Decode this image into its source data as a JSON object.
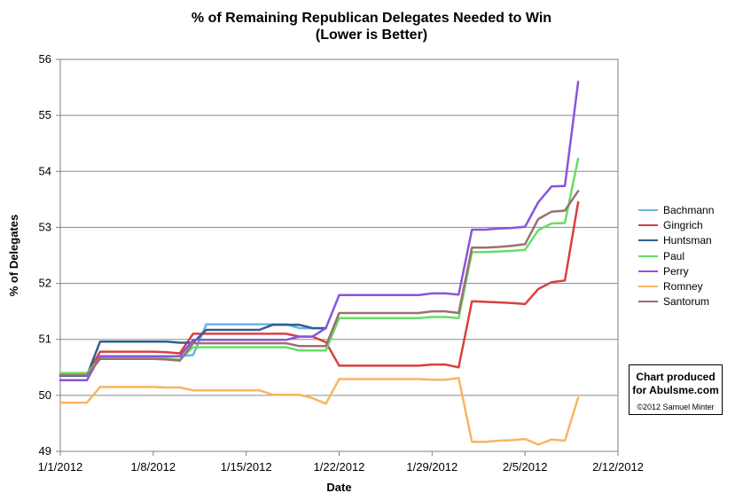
{
  "chart_data": {
    "type": "line",
    "title": "% of Remaining Republican Delegates Needed to Win",
    "subtitle": "(Lower is Better)",
    "xlabel": "Date",
    "ylabel": "% of Delegates",
    "ylim": [
      49,
      56
    ],
    "yticks": [
      "49",
      "50",
      "51",
      "52",
      "53",
      "54",
      "55",
      "56"
    ],
    "xlim_days": [
      0,
      42
    ],
    "xticks": [
      "1/1/2012",
      "1/8/2012",
      "1/15/2012",
      "1/22/2012",
      "1/29/2012",
      "2/5/2012",
      "2/12/2012"
    ],
    "grid": "horizontal",
    "legend_position": "right",
    "series": [
      {
        "name": "Bachmann",
        "color": "#6cb4e4",
        "x": [
          "1/1/2012",
          "1/2/2012",
          "1/3/2012",
          "1/4/2012",
          "1/5/2012",
          "1/6/2012",
          "1/7/2012",
          "1/8/2012",
          "1/9/2012",
          "1/10/2012",
          "1/11/2012",
          "1/12/2012",
          "1/13/2012",
          "1/14/2012",
          "1/15/2012",
          "1/16/2012",
          "1/17/2012",
          "1/18/2012",
          "1/19/2012",
          "1/20/2012",
          "1/21/2012"
        ],
        "y": [
          50.38,
          50.38,
          50.38,
          50.7,
          50.7,
          50.7,
          50.7,
          50.7,
          50.7,
          50.7,
          50.72,
          51.27,
          51.27,
          51.27,
          51.27,
          51.27,
          51.27,
          51.27,
          51.2,
          51.2,
          51.2
        ]
      },
      {
        "name": "Gingrich",
        "color": "#d94040",
        "x": [
          "1/1/2012",
          "1/2/2012",
          "1/3/2012",
          "1/4/2012",
          "1/5/2012",
          "1/6/2012",
          "1/7/2012",
          "1/8/2012",
          "1/9/2012",
          "1/10/2012",
          "1/11/2012",
          "1/12/2012",
          "1/13/2012",
          "1/14/2012",
          "1/15/2012",
          "1/16/2012",
          "1/17/2012",
          "1/18/2012",
          "1/19/2012",
          "1/20/2012",
          "1/21/2012",
          "1/22/2012",
          "1/23/2012",
          "1/24/2012",
          "1/25/2012",
          "1/26/2012",
          "1/27/2012",
          "1/28/2012",
          "1/29/2012",
          "1/30/2012",
          "1/31/2012",
          "2/1/2012",
          "2/2/2012",
          "2/3/2012",
          "2/4/2012",
          "2/5/2012",
          "2/6/2012",
          "2/7/2012",
          "2/8/2012",
          "2/9/2012"
        ],
        "y": [
          50.37,
          50.37,
          50.37,
          50.78,
          50.78,
          50.78,
          50.78,
          50.78,
          50.77,
          50.75,
          51.1,
          51.1,
          51.1,
          51.1,
          51.1,
          51.1,
          51.1,
          51.1,
          51.05,
          51.05,
          50.95,
          50.53,
          50.53,
          50.53,
          50.53,
          50.53,
          50.53,
          50.53,
          50.55,
          50.55,
          50.5,
          51.68,
          51.67,
          51.66,
          51.65,
          51.63,
          51.9,
          52.02,
          52.05,
          53.45
        ]
      },
      {
        "name": "Huntsman",
        "color": "#2f5f8f",
        "x": [
          "1/1/2012",
          "1/2/2012",
          "1/3/2012",
          "1/4/2012",
          "1/5/2012",
          "1/6/2012",
          "1/7/2012",
          "1/8/2012",
          "1/9/2012",
          "1/10/2012",
          "1/11/2012",
          "1/12/2012",
          "1/13/2012",
          "1/14/2012",
          "1/15/2012",
          "1/16/2012",
          "1/17/2012",
          "1/18/2012",
          "1/19/2012",
          "1/20/2012",
          "1/21/2012"
        ],
        "y": [
          50.35,
          50.35,
          50.35,
          50.96,
          50.96,
          50.96,
          50.96,
          50.96,
          50.96,
          50.94,
          50.94,
          51.17,
          51.17,
          51.17,
          51.17,
          51.17,
          51.26,
          51.26,
          51.26,
          51.2,
          51.2
        ]
      },
      {
        "name": "Paul",
        "color": "#66dd66",
        "x": [
          "1/1/2012",
          "1/2/2012",
          "1/3/2012",
          "1/4/2012",
          "1/5/2012",
          "1/6/2012",
          "1/7/2012",
          "1/8/2012",
          "1/9/2012",
          "1/10/2012",
          "1/11/2012",
          "1/12/2012",
          "1/13/2012",
          "1/14/2012",
          "1/15/2012",
          "1/16/2012",
          "1/17/2012",
          "1/18/2012",
          "1/19/2012",
          "1/20/2012",
          "1/21/2012",
          "1/22/2012",
          "1/23/2012",
          "1/24/2012",
          "1/25/2012",
          "1/26/2012",
          "1/27/2012",
          "1/28/2012",
          "1/29/2012",
          "1/30/2012",
          "1/31/2012",
          "2/1/2012",
          "2/2/2012",
          "2/3/2012",
          "2/4/2012",
          "2/5/2012",
          "2/6/2012",
          "2/7/2012",
          "2/8/2012",
          "2/9/2012"
        ],
        "y": [
          50.4,
          50.4,
          50.4,
          50.66,
          50.66,
          50.66,
          50.66,
          50.66,
          50.66,
          50.64,
          50.86,
          50.86,
          50.86,
          50.86,
          50.86,
          50.86,
          50.86,
          50.86,
          50.8,
          50.8,
          50.8,
          51.38,
          51.38,
          51.38,
          51.38,
          51.38,
          51.38,
          51.38,
          51.4,
          51.4,
          51.38,
          52.56,
          52.56,
          52.57,
          52.58,
          52.6,
          52.95,
          53.07,
          53.08,
          54.23
        ]
      },
      {
        "name": "Perry",
        "color": "#8855dd",
        "x": [
          "1/1/2012",
          "1/2/2012",
          "1/3/2012",
          "1/4/2012",
          "1/5/2012",
          "1/6/2012",
          "1/7/2012",
          "1/8/2012",
          "1/9/2012",
          "1/10/2012",
          "1/11/2012",
          "1/12/2012",
          "1/13/2012",
          "1/14/2012",
          "1/15/2012",
          "1/16/2012",
          "1/17/2012",
          "1/18/2012",
          "1/19/2012",
          "1/20/2012",
          "1/21/2012",
          "1/22/2012",
          "1/23/2012",
          "1/24/2012",
          "1/25/2012",
          "1/26/2012",
          "1/27/2012",
          "1/28/2012",
          "1/29/2012",
          "1/30/2012",
          "1/31/2012",
          "2/1/2012",
          "2/2/2012",
          "2/3/2012",
          "2/4/2012",
          "2/5/2012",
          "2/6/2012",
          "2/7/2012",
          "2/8/2012",
          "2/9/2012"
        ],
        "y": [
          50.27,
          50.27,
          50.27,
          50.7,
          50.7,
          50.7,
          50.7,
          50.7,
          50.7,
          50.7,
          50.99,
          50.99,
          50.99,
          50.99,
          50.99,
          50.99,
          50.99,
          50.99,
          51.05,
          51.05,
          51.2,
          51.79,
          51.79,
          51.79,
          51.79,
          51.79,
          51.79,
          51.79,
          51.82,
          51.82,
          51.8,
          52.96,
          52.96,
          52.98,
          52.99,
          53.01,
          53.45,
          53.73,
          53.74,
          55.6
        ]
      },
      {
        "name": "Romney",
        "color": "#f8b562",
        "x": [
          "1/1/2012",
          "1/2/2012",
          "1/3/2012",
          "1/4/2012",
          "1/5/2012",
          "1/6/2012",
          "1/7/2012",
          "1/8/2012",
          "1/9/2012",
          "1/10/2012",
          "1/11/2012",
          "1/12/2012",
          "1/13/2012",
          "1/14/2012",
          "1/15/2012",
          "1/16/2012",
          "1/17/2012",
          "1/18/2012",
          "1/19/2012",
          "1/20/2012",
          "1/21/2012",
          "1/22/2012",
          "1/23/2012",
          "1/24/2012",
          "1/25/2012",
          "1/26/2012",
          "1/27/2012",
          "1/28/2012",
          "1/29/2012",
          "1/30/2012",
          "1/31/2012",
          "2/1/2012",
          "2/2/2012",
          "2/3/2012",
          "2/4/2012",
          "2/5/2012",
          "2/6/2012",
          "2/7/2012",
          "2/8/2012",
          "2/9/2012"
        ],
        "y": [
          49.87,
          49.87,
          49.87,
          50.15,
          50.15,
          50.15,
          50.15,
          50.15,
          50.14,
          50.14,
          50.09,
          50.09,
          50.09,
          50.09,
          50.09,
          50.09,
          50.01,
          50.01,
          50.01,
          49.95,
          49.85,
          50.29,
          50.29,
          50.29,
          50.29,
          50.29,
          50.29,
          50.29,
          50.28,
          50.28,
          50.31,
          49.17,
          49.17,
          49.19,
          49.2,
          49.22,
          49.12,
          49.21,
          49.19,
          49.96
        ]
      },
      {
        "name": "Santorum",
        "color": "#9c7070",
        "x": [
          "1/1/2012",
          "1/2/2012",
          "1/3/2012",
          "1/4/2012",
          "1/5/2012",
          "1/6/2012",
          "1/7/2012",
          "1/8/2012",
          "1/9/2012",
          "1/10/2012",
          "1/11/2012",
          "1/12/2012",
          "1/13/2012",
          "1/14/2012",
          "1/15/2012",
          "1/16/2012",
          "1/17/2012",
          "1/18/2012",
          "1/19/2012",
          "1/20/2012",
          "1/21/2012",
          "1/22/2012",
          "1/23/2012",
          "1/24/2012",
          "1/25/2012",
          "1/26/2012",
          "1/27/2012",
          "1/28/2012",
          "1/29/2012",
          "1/30/2012",
          "1/31/2012",
          "2/1/2012",
          "2/2/2012",
          "2/3/2012",
          "2/4/2012",
          "2/5/2012",
          "2/6/2012",
          "2/7/2012",
          "2/8/2012",
          "2/9/2012"
        ],
        "y": [
          50.36,
          50.36,
          50.36,
          50.65,
          50.65,
          50.65,
          50.65,
          50.65,
          50.64,
          50.62,
          50.93,
          50.93,
          50.93,
          50.93,
          50.93,
          50.93,
          50.93,
          50.93,
          50.88,
          50.88,
          50.88,
          51.47,
          51.47,
          51.47,
          51.47,
          51.47,
          51.47,
          51.47,
          51.5,
          51.5,
          51.47,
          52.64,
          52.64,
          52.65,
          52.67,
          52.7,
          53.15,
          53.28,
          53.3,
          53.65
        ]
      }
    ]
  },
  "credit": {
    "line1": "Chart produced",
    "line2": "for Abulsme.com",
    "line3": "©2012 Samuel Minter"
  }
}
